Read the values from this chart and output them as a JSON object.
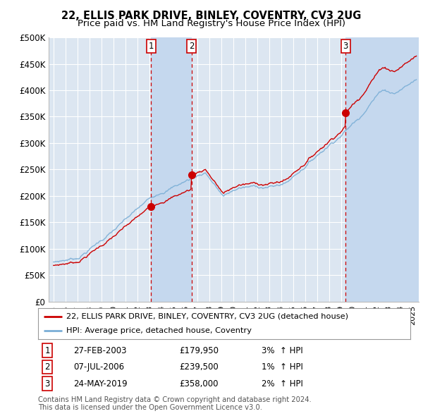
{
  "title": "22, ELLIS PARK DRIVE, BINLEY, COVENTRY, CV3 2UG",
  "subtitle": "Price paid vs. HM Land Registry's House Price Index (HPI)",
  "ylim": [
    0,
    500000
  ],
  "yticks": [
    0,
    50000,
    100000,
    150000,
    200000,
    250000,
    300000,
    350000,
    400000,
    450000,
    500000
  ],
  "ytick_labels": [
    "£0",
    "£50K",
    "£100K",
    "£150K",
    "£200K",
    "£250K",
    "£300K",
    "£350K",
    "£400K",
    "£450K",
    "£500K"
  ],
  "xlim_start": 1994.6,
  "xlim_end": 2025.5,
  "background_color": "#ffffff",
  "chart_bg_color": "#dce6f1",
  "shade_color": "#c5d8ee",
  "grid_color": "#ffffff",
  "hpi_line_color": "#7aaed6",
  "price_line_color": "#cc0000",
  "sale_marker_color": "#cc0000",
  "vline_color": "#cc0000",
  "transactions": [
    {
      "id": 1,
      "date_label": "27-FEB-2003",
      "date_x": 2003.15,
      "price": 179950,
      "pct": "3%",
      "direction": "↑"
    },
    {
      "id": 2,
      "date_label": "07-JUL-2006",
      "date_x": 2006.52,
      "price": 239500,
      "pct": "1%",
      "direction": "↑"
    },
    {
      "id": 3,
      "date_label": "24-MAY-2019",
      "date_x": 2019.39,
      "price": 358000,
      "pct": "2%",
      "direction": "↑"
    }
  ],
  "legend_address": "22, ELLIS PARK DRIVE, BINLEY, COVENTRY, CV3 2UG (detached house)",
  "legend_hpi": "HPI: Average price, detached house, Coventry",
  "footnote": "Contains HM Land Registry data © Crown copyright and database right 2024.\nThis data is licensed under the Open Government Licence v3.0."
}
